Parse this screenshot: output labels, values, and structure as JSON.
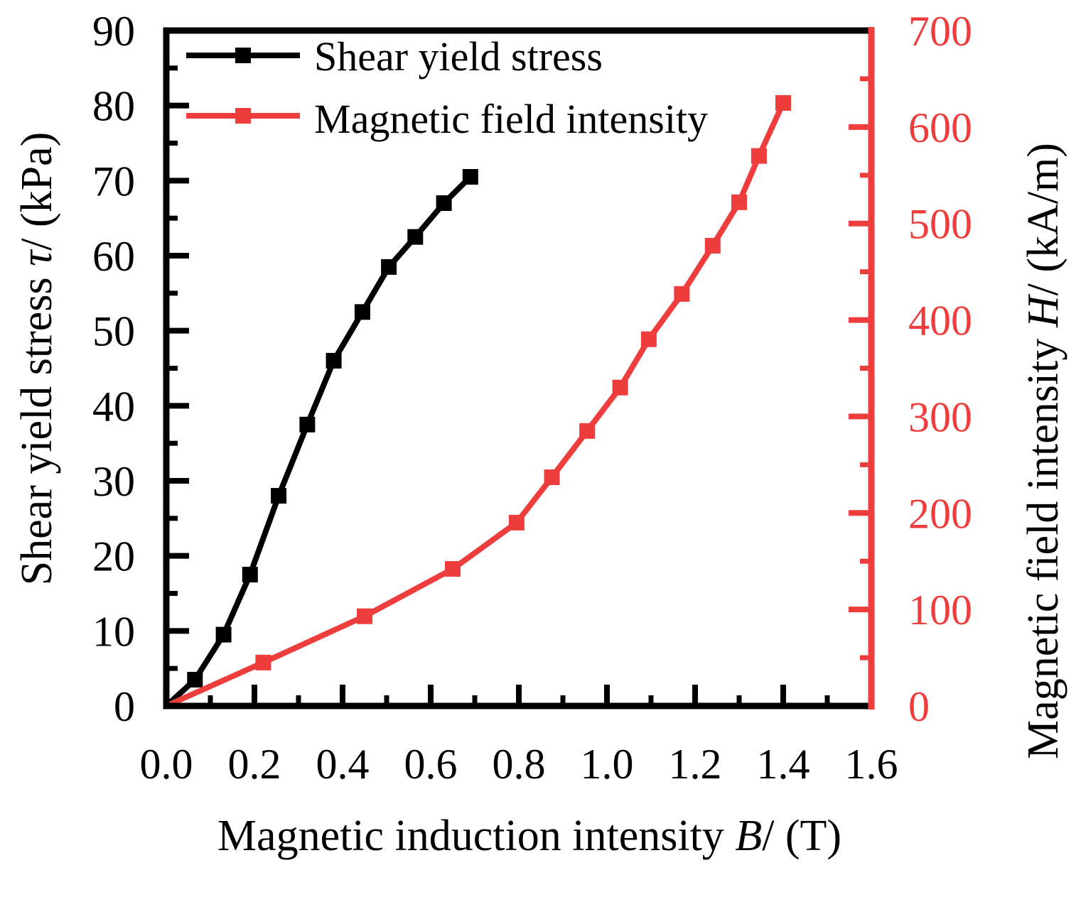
{
  "chart_data": {
    "type": "line",
    "x_axis": {
      "label_prefix": "Magnetic induction intensity ",
      "label_symbol": "B",
      "label_suffix": "/ (T)",
      "range": [
        0.0,
        1.6
      ],
      "ticks": [
        "0.0",
        "0.2",
        "0.4",
        "0.6",
        "0.8",
        "1.0",
        "1.2",
        "1.4",
        "1.6"
      ]
    },
    "y_left": {
      "label_prefix": "Shear yield stress ",
      "label_symbol": "τ",
      "label_suffix": "/ (kPa)",
      "range": [
        0,
        90
      ],
      "ticks": [
        "0",
        "10",
        "20",
        "30",
        "40",
        "50",
        "60",
        "70",
        "80",
        "90"
      ],
      "color": "#000000"
    },
    "y_right": {
      "label_prefix": "Magnetic field intensity ",
      "label_symbol": "H",
      "label_suffix": "/ (kA/m)",
      "range": [
        0,
        700
      ],
      "ticks": [
        "0",
        "100",
        "200",
        "300",
        "400",
        "500",
        "600",
        "700"
      ],
      "color": "#ee3d3d"
    },
    "legend_position": "top-left",
    "grid": false,
    "series": [
      {
        "name": "Shear yield stress",
        "axis": "left",
        "color": "#000000",
        "x": [
          0.0,
          0.065,
          0.13,
          0.19,
          0.255,
          0.32,
          0.38,
          0.445,
          0.505,
          0.565,
          0.63,
          0.69
        ],
        "y": [
          0,
          3.5,
          9.5,
          17.5,
          28,
          37.5,
          46,
          52.5,
          58.5,
          62.5,
          67,
          70.5
        ]
      },
      {
        "name": "Magnetic field intensity",
        "axis": "right",
        "color": "#ee3d3d",
        "x": [
          0.0,
          0.22,
          0.45,
          0.65,
          0.795,
          0.875,
          0.955,
          1.03,
          1.095,
          1.17,
          1.24,
          1.3,
          1.345,
          1.4
        ],
        "y": [
          0,
          45,
          93,
          142,
          190,
          237,
          285,
          330,
          380,
          427,
          477,
          522,
          570,
          625
        ]
      }
    ]
  }
}
